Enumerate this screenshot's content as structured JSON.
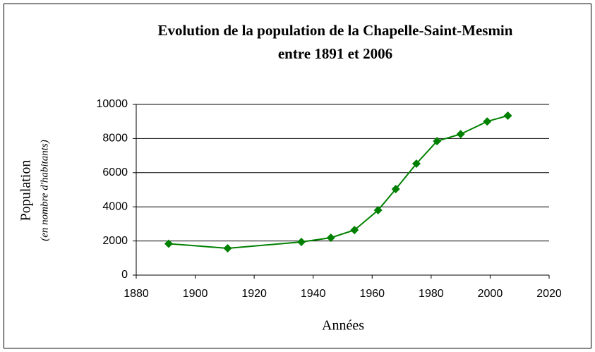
{
  "chart_data": {
    "type": "line",
    "title": [
      "Evolution de la population de la Chapelle-Saint-Mesmin",
      "entre 1891 et 2006"
    ],
    "x_label": "Années",
    "y_label": "Population",
    "y_label_note": "(en nombre d'habitants)",
    "x": [
      1891,
      1911,
      1936,
      1946,
      1954,
      1962,
      1968,
      1975,
      1982,
      1990,
      1999,
      2006
    ],
    "series": [
      {
        "name": "Population",
        "color": "#008000",
        "values": [
          1840,
          1570,
          1940,
          2190,
          2640,
          3800,
          5040,
          6530,
          7850,
          8260,
          9000,
          9340
        ]
      }
    ],
    "xlim": [
      1880,
      2020
    ],
    "xticks": [
      1880,
      1900,
      1920,
      1940,
      1960,
      1980,
      2000,
      2020
    ],
    "ylim": [
      0,
      10000
    ],
    "yticks": [
      0,
      2000,
      4000,
      6000,
      8000,
      10000
    ],
    "grid": true
  }
}
